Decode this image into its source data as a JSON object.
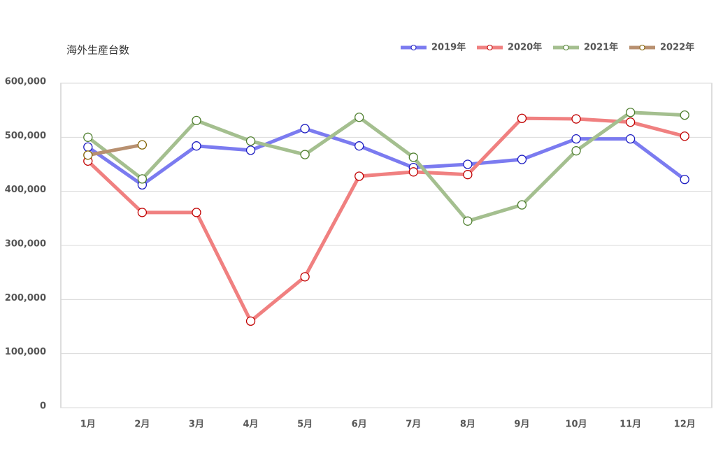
{
  "chart_data": {
    "type": "line",
    "title": "海外生産台数",
    "categories": [
      "1月",
      "2月",
      "3月",
      "4月",
      "5月",
      "6月",
      "7月",
      "8月",
      "9月",
      "10月",
      "11月",
      "12月"
    ],
    "series": [
      {
        "name": "2019年",
        "color": "#7b7bf0",
        "marker_color": "#1c1cc0",
        "values": [
          482000,
          412000,
          484000,
          476000,
          516000,
          484000,
          444000,
          450000,
          459000,
          497000,
          497000,
          422000
        ]
      },
      {
        "name": "2020年",
        "color": "#f08080",
        "marker_color": "#c00000",
        "values": [
          456000,
          361000,
          361000,
          160000,
          242000,
          428000,
          436000,
          431000,
          535000,
          534000,
          528000,
          502000
        ]
      },
      {
        "name": "2021年",
        "color": "#a4bf8f",
        "marker_color": "#4f7f2f",
        "values": [
          500000,
          423000,
          531000,
          493000,
          468000,
          537000,
          463000,
          345000,
          375000,
          475000,
          546000,
          541000
        ]
      },
      {
        "name": "2022年",
        "color": "#b89070",
        "marker_color": "#806000",
        "values": [
          467000,
          486000,
          null,
          null,
          null,
          null,
          null,
          null,
          null,
          null,
          null,
          null
        ]
      }
    ],
    "ylim": [
      0,
      600000
    ],
    "yticks": [
      0,
      {
        "value": 100000,
        "label": "100,000"
      },
      {
        "value": 200000,
        "label": "200,000"
      },
      {
        "value": 300000,
        "label": "300,000"
      },
      {
        "value": 400000,
        "label": "400,000"
      },
      {
        "value": 500000,
        "label": "500,000"
      },
      {
        "value": 600000,
        "label": "600,000"
      }
    ],
    "grid": true,
    "legend": "top-right"
  }
}
